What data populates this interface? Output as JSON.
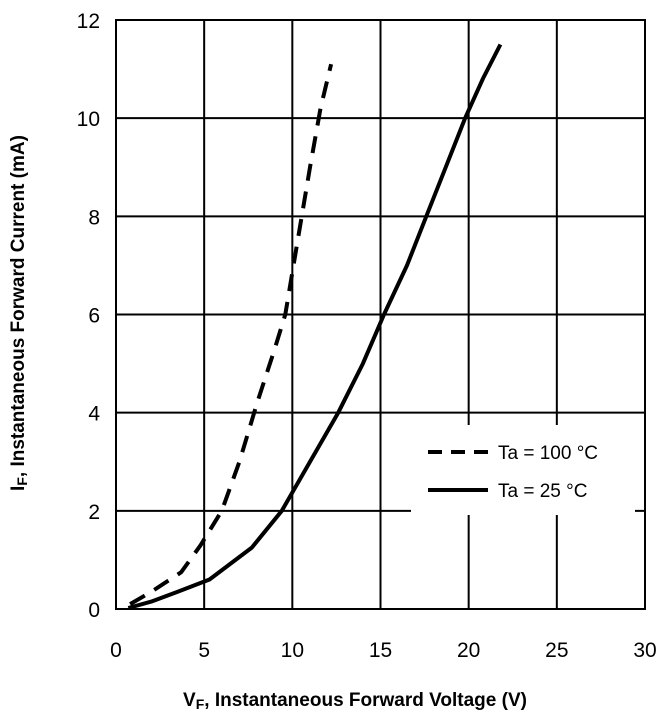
{
  "chart_data": {
    "type": "line",
    "xlabel_main": "V",
    "xlabel_sub": "F",
    "xlabel_rest": ",  Instantaneous Forward Voltage (V)",
    "ylabel_main": "I",
    "ylabel_sub": "F",
    "ylabel_rest": ", Instantaneous Forward Current (mA)",
    "xlim": [
      0,
      30
    ],
    "ylim": [
      0,
      12
    ],
    "x_ticks": [
      0,
      5,
      10,
      15,
      20,
      25,
      30
    ],
    "y_ticks": [
      0,
      2,
      4,
      6,
      8,
      10,
      12
    ],
    "x_tick_labels": [
      "0",
      "5",
      "10",
      "15",
      "20",
      "25",
      "30"
    ],
    "y_tick_labels": [
      "0",
      "2",
      "4",
      "6",
      "8",
      "10",
      "12"
    ],
    "grid": true,
    "legend_position": "right-middle",
    "series": [
      {
        "name": "Ta = 100 °C",
        "style": "dashed",
        "color": "#000000",
        "points": [
          [
            0.8,
            0.1
          ],
          [
            2.0,
            0.35
          ],
          [
            3.7,
            0.75
          ],
          [
            4.8,
            1.3
          ],
          [
            6.0,
            2.0
          ],
          [
            7.0,
            3.0
          ],
          [
            8.0,
            4.2
          ],
          [
            9.0,
            5.3
          ],
          [
            9.6,
            6.0
          ],
          [
            10.3,
            7.5
          ],
          [
            11.0,
            9.0
          ],
          [
            11.6,
            10.2
          ],
          [
            12.2,
            11.1
          ]
        ]
      },
      {
        "name": "Ta = 25 °C",
        "style": "solid",
        "color": "#000000",
        "points": [
          [
            0.7,
            0.02
          ],
          [
            2.0,
            0.15
          ],
          [
            3.5,
            0.35
          ],
          [
            5.3,
            0.6
          ],
          [
            7.7,
            1.25
          ],
          [
            9.4,
            2.0
          ],
          [
            11.0,
            3.0
          ],
          [
            12.6,
            4.0
          ],
          [
            14.0,
            5.0
          ],
          [
            15.2,
            6.0
          ],
          [
            16.5,
            7.0
          ],
          [
            17.6,
            8.0
          ],
          [
            18.7,
            9.0
          ],
          [
            19.8,
            10.0
          ],
          [
            20.8,
            10.8
          ],
          [
            21.8,
            11.5
          ]
        ]
      }
    ]
  }
}
